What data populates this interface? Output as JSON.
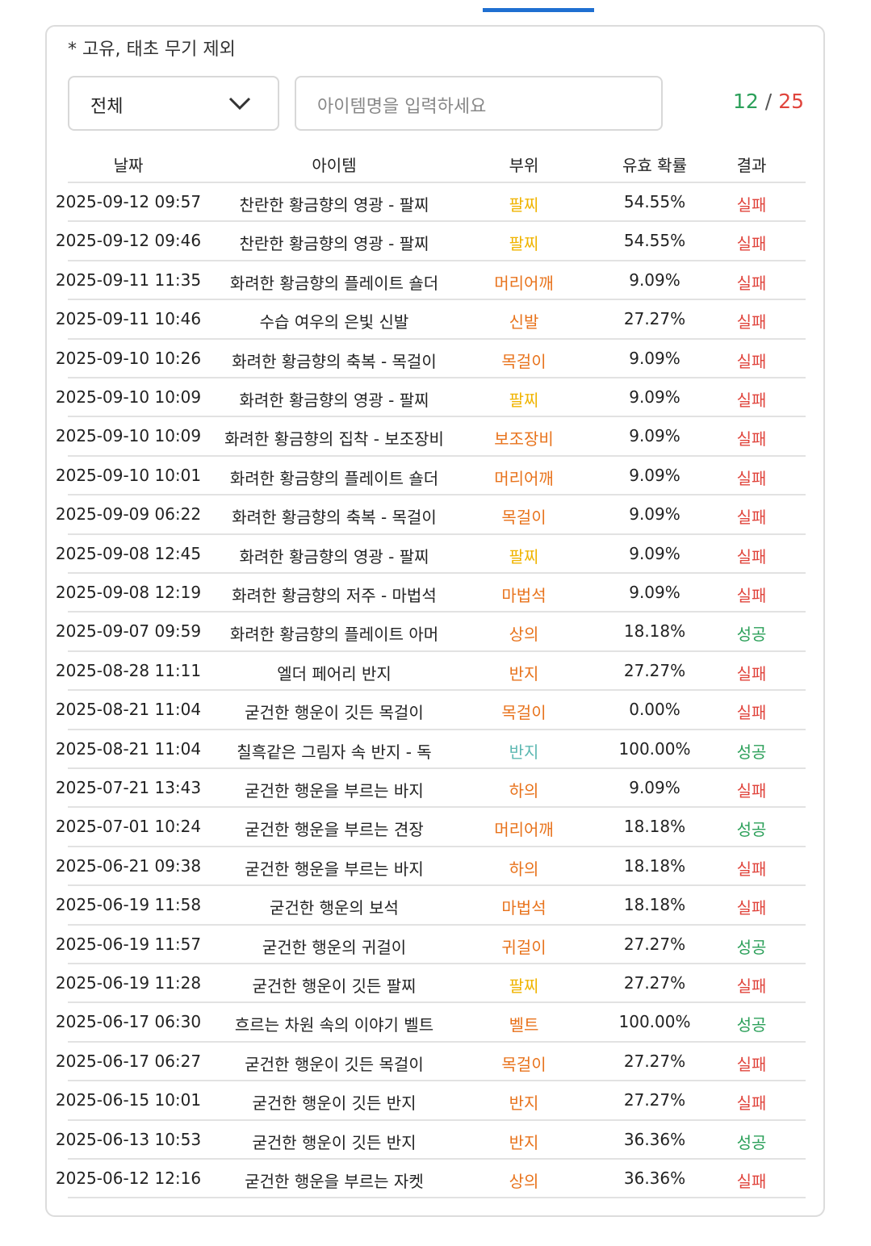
{
  "filter": {
    "note": "* 고유, 태초 무기 제외",
    "category": "전체",
    "search_placeholder": "아이템명을 입력하세요",
    "success_count": 12,
    "separator": "/",
    "total_count": 25
  },
  "table": {
    "headers": [
      "날짜",
      "아이템",
      "부위",
      "유효 확률",
      "결과"
    ],
    "rows": [
      {
        "date": "2025-09-12 09:57",
        "item": "찬란한 황금향의 영광 - 팔찌",
        "part": "팔찌",
        "part_color": "#f0b400",
        "prob": "54.55%",
        "result": "실패",
        "result_color": "#e0443c"
      },
      {
        "date": "2025-09-12 09:46",
        "item": "찬란한 황금향의 영광 - 팔찌",
        "part": "팔찌",
        "part_color": "#f0b400",
        "prob": "54.55%",
        "result": "실패",
        "result_color": "#e0443c"
      },
      {
        "date": "2025-09-11 11:35",
        "item": "화려한 황금향의 플레이트 숄더",
        "part": "머리어깨",
        "part_color": "#e8731c",
        "prob": "9.09%",
        "result": "실패",
        "result_color": "#e0443c"
      },
      {
        "date": "2025-09-11 10:46",
        "item": "수습 여우의 은빛 신발",
        "part": "신발",
        "part_color": "#e8731c",
        "prob": "27.27%",
        "result": "실패",
        "result_color": "#e0443c"
      },
      {
        "date": "2025-09-10 10:26",
        "item": "화려한 황금향의 축복 - 목걸이",
        "part": "목걸이",
        "part_color": "#e8731c",
        "prob": "9.09%",
        "result": "실패",
        "result_color": "#e0443c"
      },
      {
        "date": "2025-09-10 10:09",
        "item": "화려한 황금향의 영광 - 팔찌",
        "part": "팔찌",
        "part_color": "#f0b400",
        "prob": "9.09%",
        "result": "실패",
        "result_color": "#e0443c"
      },
      {
        "date": "2025-09-10 10:09",
        "item": "화려한 황금향의 집착 - 보조장비",
        "part": "보조장비",
        "part_color": "#e8731c",
        "prob": "9.09%",
        "result": "실패",
        "result_color": "#e0443c"
      },
      {
        "date": "2025-09-10 10:01",
        "item": "화려한 황금향의 플레이트 숄더",
        "part": "머리어깨",
        "part_color": "#e8731c",
        "prob": "9.09%",
        "result": "실패",
        "result_color": "#e0443c"
      },
      {
        "date": "2025-09-09 06:22",
        "item": "화려한 황금향의 축복 - 목걸이",
        "part": "목걸이",
        "part_color": "#e8731c",
        "prob": "9.09%",
        "result": "실패",
        "result_color": "#e0443c"
      },
      {
        "date": "2025-09-08 12:45",
        "item": "화려한 황금향의 영광 - 팔찌",
        "part": "팔찌",
        "part_color": "#f0b400",
        "prob": "9.09%",
        "result": "실패",
        "result_color": "#e0443c"
      },
      {
        "date": "2025-09-08 12:19",
        "item": "화려한 황금향의 저주 - 마법석",
        "part": "마법석",
        "part_color": "#e8731c",
        "prob": "9.09%",
        "result": "실패",
        "result_color": "#e0443c"
      },
      {
        "date": "2025-09-07 09:59",
        "item": "화려한 황금향의 플레이트 아머",
        "part": "상의",
        "part_color": "#e8731c",
        "prob": "18.18%",
        "result": "성공",
        "result_color": "#2ca05a"
      },
      {
        "date": "2025-08-28 11:11",
        "item": "엘더 페어리 반지",
        "part": "반지",
        "part_color": "#e8731c",
        "prob": "27.27%",
        "result": "실패",
        "result_color": "#e0443c"
      },
      {
        "date": "2025-08-21 11:04",
        "item": "굳건한 행운이 깃든 목걸이",
        "part": "목걸이",
        "part_color": "#e8731c",
        "prob": "0.00%",
        "result": "실패",
        "result_color": "#e0443c"
      },
      {
        "date": "2025-08-21 11:04",
        "item": "칠흑같은 그림자 속 반지 - 독",
        "part": "반지",
        "part_color": "#5cb8b2",
        "prob": "100.00%",
        "result": "성공",
        "result_color": "#2ca05a"
      },
      {
        "date": "2025-07-21 13:43",
        "item": "굳건한 행운을 부르는 바지",
        "part": "하의",
        "part_color": "#e8731c",
        "prob": "9.09%",
        "result": "실패",
        "result_color": "#e0443c"
      },
      {
        "date": "2025-07-01 10:24",
        "item": "굳건한 행운을 부르는 견장",
        "part": "머리어깨",
        "part_color": "#e8731c",
        "prob": "18.18%",
        "result": "성공",
        "result_color": "#2ca05a"
      },
      {
        "date": "2025-06-21 09:38",
        "item": "굳건한 행운을 부르는 바지",
        "part": "하의",
        "part_color": "#e8731c",
        "prob": "18.18%",
        "result": "실패",
        "result_color": "#e0443c"
      },
      {
        "date": "2025-06-19 11:58",
        "item": "굳건한 행운의 보석",
        "part": "마법석",
        "part_color": "#e8731c",
        "prob": "18.18%",
        "result": "실패",
        "result_color": "#e0443c"
      },
      {
        "date": "2025-06-19 11:57",
        "item": "굳건한 행운의 귀걸이",
        "part": "귀걸이",
        "part_color": "#e8731c",
        "prob": "27.27%",
        "result": "성공",
        "result_color": "#2ca05a"
      },
      {
        "date": "2025-06-19 11:28",
        "item": "굳건한 행운이 깃든 팔찌",
        "part": "팔찌",
        "part_color": "#f0b400",
        "prob": "27.27%",
        "result": "실패",
        "result_color": "#e0443c"
      },
      {
        "date": "2025-06-17 06:30",
        "item": "흐르는 차원 속의 이야기 벨트",
        "part": "벨트",
        "part_color": "#e8731c",
        "prob": "100.00%",
        "result": "성공",
        "result_color": "#2ca05a"
      },
      {
        "date": "2025-06-17 06:27",
        "item": "굳건한 행운이 깃든 목걸이",
        "part": "목걸이",
        "part_color": "#e8731c",
        "prob": "27.27%",
        "result": "실패",
        "result_color": "#e0443c"
      },
      {
        "date": "2025-06-15 10:01",
        "item": "굳건한 행운이 깃든 반지",
        "part": "반지",
        "part_color": "#e8731c",
        "prob": "27.27%",
        "result": "실패",
        "result_color": "#e0443c"
      },
      {
        "date": "2025-06-13 10:53",
        "item": "굳건한 행운이 깃든 반지",
        "part": "반지",
        "part_color": "#e8731c",
        "prob": "36.36%",
        "result": "성공",
        "result_color": "#2ca05a"
      },
      {
        "date": "2025-06-12 12:16",
        "item": "굳건한 행운을 부르는 자켓",
        "part": "상의",
        "part_color": "#e8731c",
        "prob": "36.36%",
        "result": "실패",
        "result_color": "#e0443c"
      }
    ]
  }
}
